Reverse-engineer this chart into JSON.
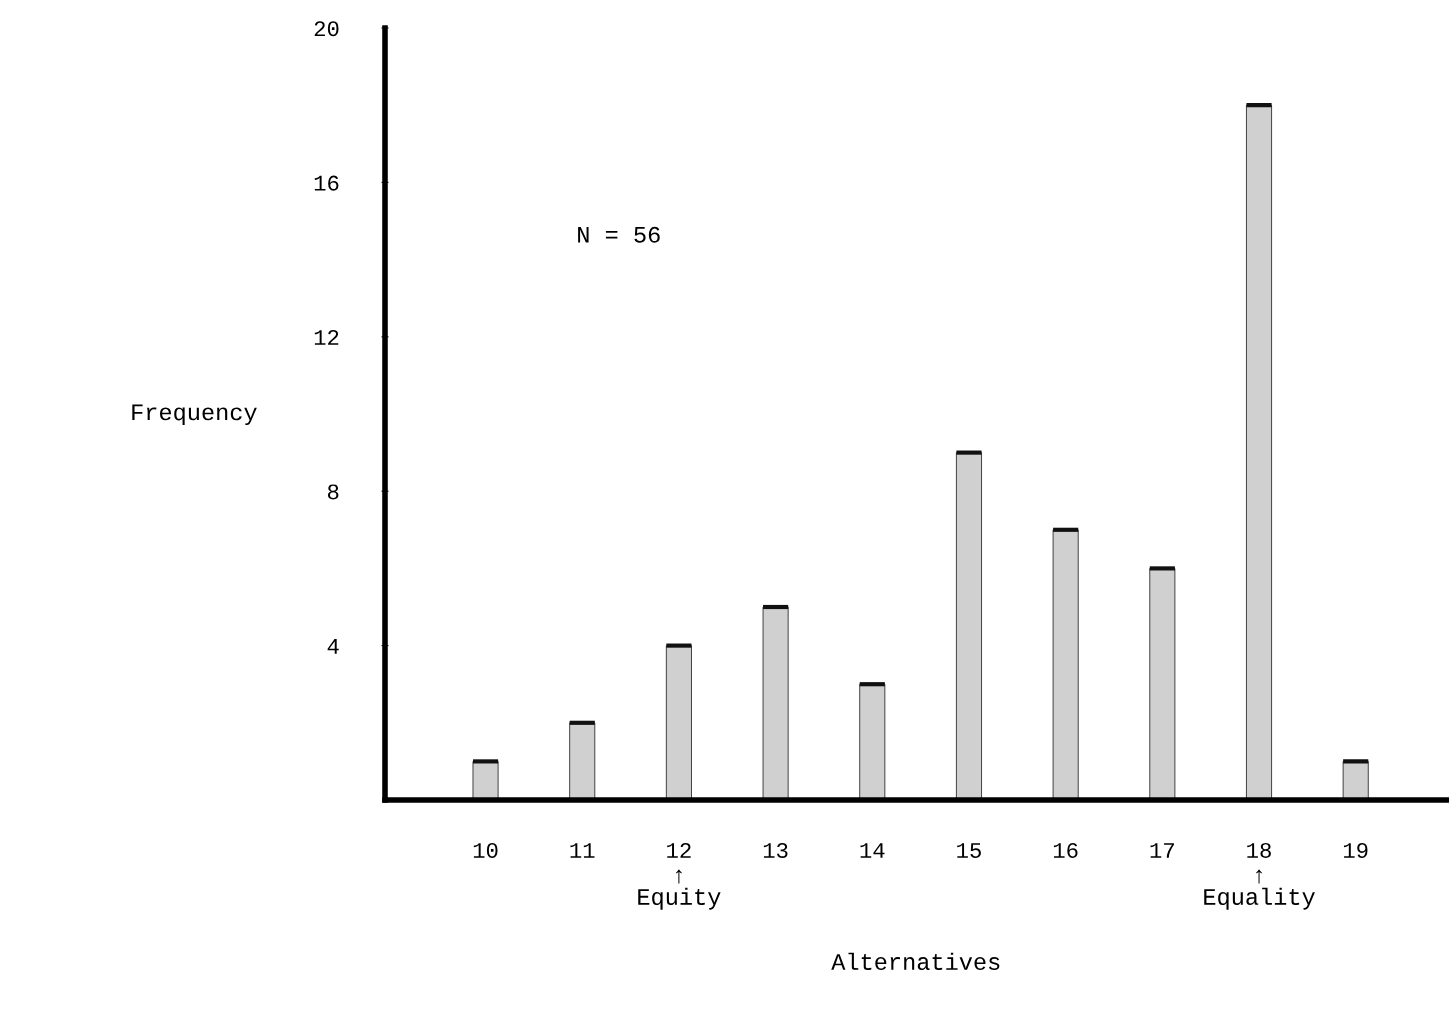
{
  "chart_data": {
    "type": "bar",
    "xlabel": "Alternatives",
    "ylabel": "Frequency",
    "categories": [
      "10",
      "11",
      "12",
      "13",
      "14",
      "15",
      "16",
      "17",
      "18",
      "19"
    ],
    "values": [
      1,
      2,
      4,
      5,
      3,
      9,
      7,
      6,
      18,
      1
    ],
    "color": "#d0d0d0",
    "ylim": [
      0,
      20
    ],
    "yticks": [
      4,
      8,
      12,
      16,
      20
    ],
    "grid": false,
    "legend": false,
    "annotations": [
      "N = 56",
      "↑\nEquity",
      "↑\nEquality"
    ]
  }
}
